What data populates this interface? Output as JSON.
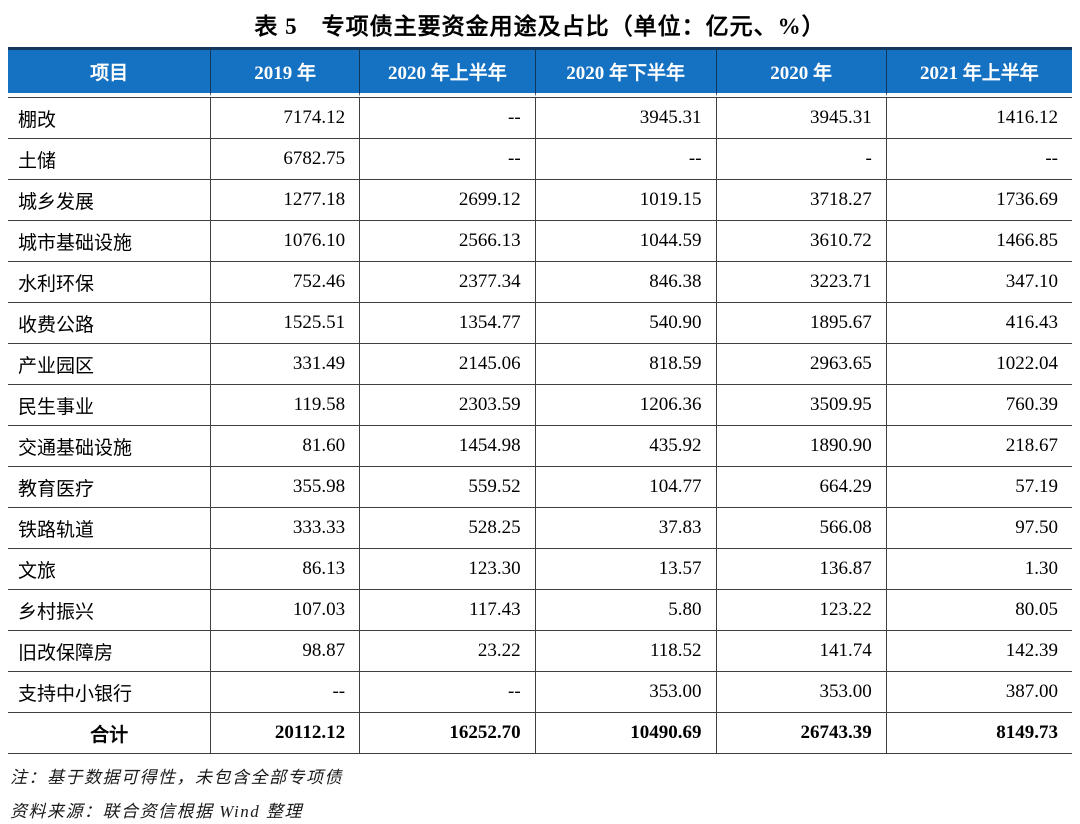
{
  "title": "表 5　专项债主要资金用途及占比（单位：亿元、%）",
  "table": {
    "columns": [
      "项目",
      "2019 年",
      "2020 年上半年",
      "2020 年下半年",
      "2020 年",
      "2021 年上半年"
    ],
    "rows": [
      {
        "label": "棚改",
        "values": [
          "7174.12",
          "--",
          "3945.31",
          "3945.31",
          "1416.12"
        ]
      },
      {
        "label": "土储",
        "values": [
          "6782.75",
          "--",
          "--",
          "-",
          "--"
        ]
      },
      {
        "label": "城乡发展",
        "values": [
          "1277.18",
          "2699.12",
          "1019.15",
          "3718.27",
          "1736.69"
        ]
      },
      {
        "label": "城市基础设施",
        "values": [
          "1076.10",
          "2566.13",
          "1044.59",
          "3610.72",
          "1466.85"
        ]
      },
      {
        "label": "水利环保",
        "values": [
          "752.46",
          "2377.34",
          "846.38",
          "3223.71",
          "347.10"
        ]
      },
      {
        "label": "收费公路",
        "values": [
          "1525.51",
          "1354.77",
          "540.90",
          "1895.67",
          "416.43"
        ]
      },
      {
        "label": "产业园区",
        "values": [
          "331.49",
          "2145.06",
          "818.59",
          "2963.65",
          "1022.04"
        ]
      },
      {
        "label": "民生事业",
        "values": [
          "119.58",
          "2303.59",
          "1206.36",
          "3509.95",
          "760.39"
        ]
      },
      {
        "label": "交通基础设施",
        "values": [
          "81.60",
          "1454.98",
          "435.92",
          "1890.90",
          "218.67"
        ]
      },
      {
        "label": "教育医疗",
        "values": [
          "355.98",
          "559.52",
          "104.77",
          "664.29",
          "57.19"
        ]
      },
      {
        "label": "铁路轨道",
        "values": [
          "333.33",
          "528.25",
          "37.83",
          "566.08",
          "97.50"
        ]
      },
      {
        "label": "文旅",
        "values": [
          "86.13",
          "123.30",
          "13.57",
          "136.87",
          "1.30"
        ]
      },
      {
        "label": "乡村振兴",
        "values": [
          "107.03",
          "117.43",
          "5.80",
          "123.22",
          "80.05"
        ]
      },
      {
        "label": "旧改保障房",
        "values": [
          "98.87",
          "23.22",
          "118.52",
          "141.74",
          "142.39"
        ]
      },
      {
        "label": "支持中小银行",
        "values": [
          "--",
          "--",
          "353.00",
          "353.00",
          "387.00"
        ]
      }
    ],
    "total_row": {
      "label": "合计",
      "values": [
        "20112.12",
        "16252.70",
        "10490.69",
        "26743.39",
        "8149.73"
      ]
    }
  },
  "notes": [
    "注：基于数据可得性，未包含全部专项债",
    "资料来源：联合资信根据 Wind 整理"
  ],
  "colors": {
    "header_bg": "#1571C2",
    "header_text": "#FFFFFF",
    "header_top_border": "#15375E",
    "grid_line": "#3F3F3F"
  },
  "chart_data": {
    "type": "table",
    "title": "表 5 专项债主要资金用途及占比（单位：亿元、%）",
    "categories": [
      "棚改",
      "土储",
      "城乡发展",
      "城市基础设施",
      "水利环保",
      "收费公路",
      "产业园区",
      "民生事业",
      "交通基础设施",
      "教育医疗",
      "铁路轨道",
      "文旅",
      "乡村振兴",
      "旧改保障房",
      "支持中小银行",
      "合计"
    ],
    "series": [
      {
        "name": "2019 年",
        "values": [
          7174.12,
          6782.75,
          1277.18,
          1076.1,
          752.46,
          1525.51,
          331.49,
          119.58,
          81.6,
          355.98,
          333.33,
          86.13,
          107.03,
          98.87,
          null,
          20112.12
        ]
      },
      {
        "name": "2020 年上半年",
        "values": [
          null,
          null,
          2699.12,
          2566.13,
          2377.34,
          1354.77,
          2145.06,
          2303.59,
          1454.98,
          559.52,
          528.25,
          123.3,
          117.43,
          23.22,
          null,
          16252.7
        ]
      },
      {
        "name": "2020 年下半年",
        "values": [
          3945.31,
          null,
          1019.15,
          1044.59,
          846.38,
          540.9,
          818.59,
          1206.36,
          435.92,
          104.77,
          37.83,
          13.57,
          5.8,
          118.52,
          353.0,
          10490.69
        ]
      },
      {
        "name": "2020 年",
        "values": [
          3945.31,
          null,
          3718.27,
          3610.72,
          3223.71,
          1895.67,
          2963.65,
          3509.95,
          1890.9,
          664.29,
          566.08,
          136.87,
          123.22,
          141.74,
          353.0,
          26743.39
        ]
      },
      {
        "name": "2021 年上半年",
        "values": [
          1416.12,
          null,
          1736.69,
          1466.85,
          347.1,
          416.43,
          1022.04,
          760.39,
          218.67,
          57.19,
          97.5,
          1.3,
          80.05,
          142.39,
          387.0,
          8149.73
        ]
      }
    ]
  }
}
